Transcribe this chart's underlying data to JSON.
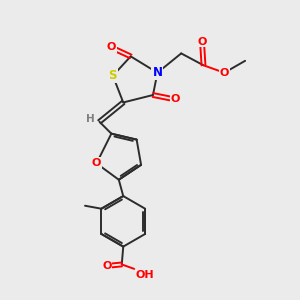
{
  "background_color": "#ebebeb",
  "bond_color": "#2c2c2c",
  "atom_colors": {
    "O": "#ff0000",
    "S": "#cccc00",
    "N": "#0000ff",
    "C": "#2c2c2c",
    "H": "#808080"
  },
  "font_size": 8.0,
  "bond_lw": 1.4
}
